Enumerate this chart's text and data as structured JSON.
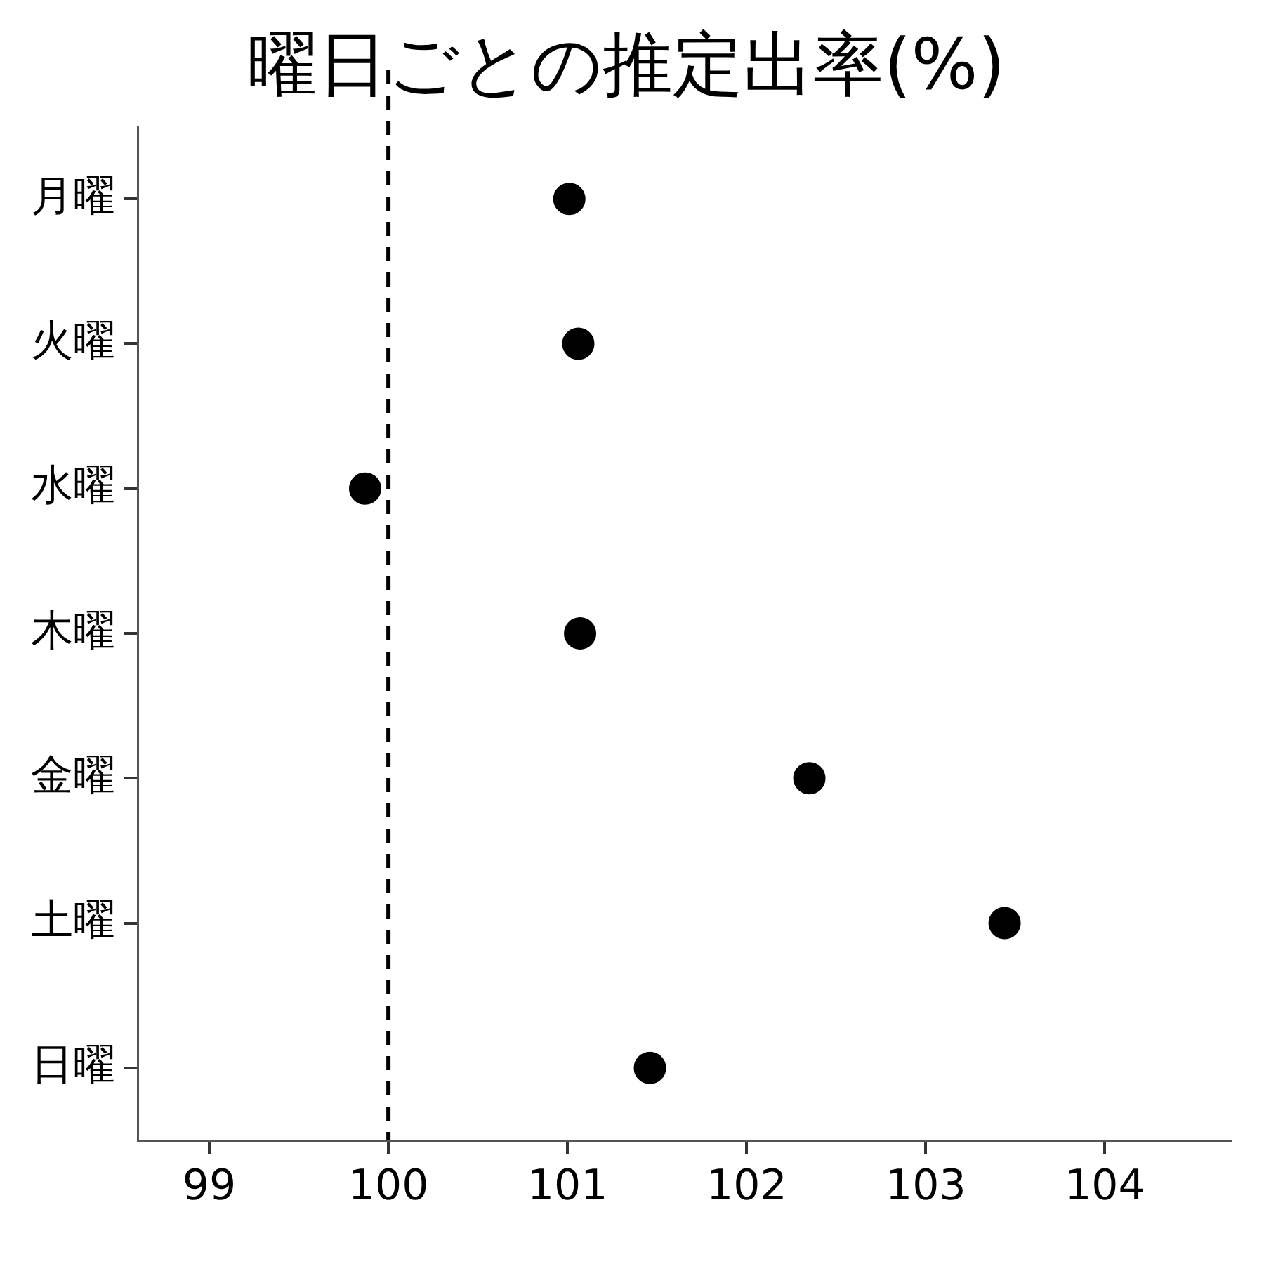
{
  "chart_data": {
    "type": "scatter",
    "orientation": "horizontal",
    "title": "曜日ごとの推定出率(%)",
    "categories": [
      "月曜",
      "火曜",
      "水曜",
      "木曜",
      "金曜",
      "土曜",
      "日曜"
    ],
    "values": [
      101.01,
      101.06,
      99.87,
      101.07,
      102.35,
      103.44,
      101.46
    ],
    "color": "#000000",
    "marker": "circle",
    "xlim": [
      98.6,
      104.7
    ],
    "xticks": [
      99,
      100,
      101,
      102,
      103,
      104
    ],
    "ref_lines": [
      {
        "axis": "x",
        "value": 100,
        "color": "#000000",
        "line_style": "dashed"
      }
    ],
    "grid": false,
    "legend": false
  }
}
